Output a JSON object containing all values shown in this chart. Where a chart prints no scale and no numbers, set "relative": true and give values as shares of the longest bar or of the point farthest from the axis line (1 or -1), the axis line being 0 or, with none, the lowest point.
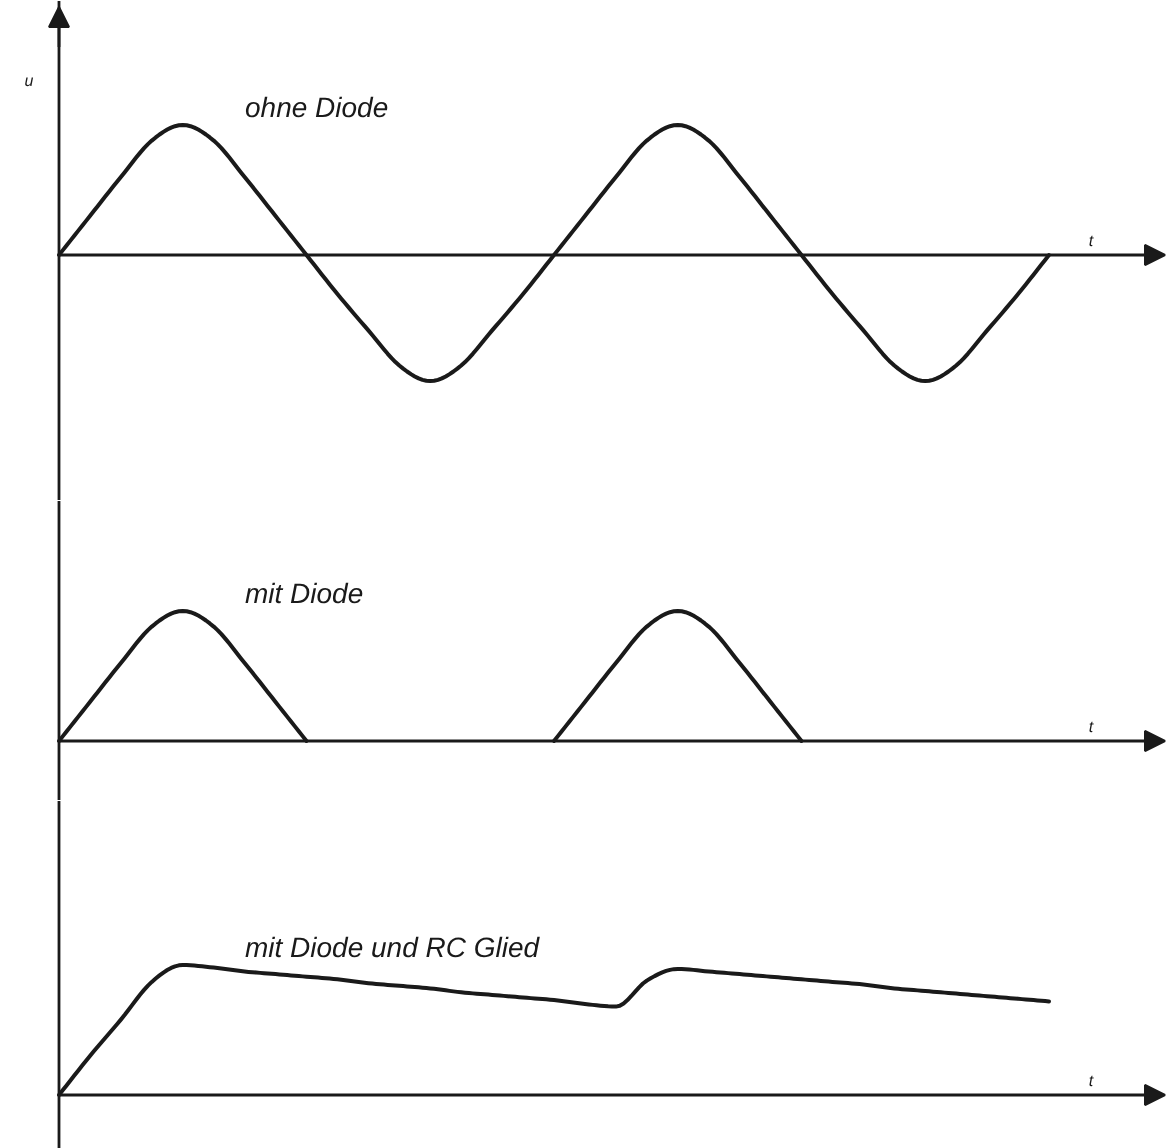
{
  "chart_data": [
    {
      "type": "line",
      "title": "ohne Diode",
      "ylabel": "u",
      "xlabel": "t",
      "relative": true,
      "categories": [
        null,
        null,
        null,
        null,
        null,
        null,
        null,
        null,
        null,
        null,
        null,
        null,
        null,
        null,
        null,
        null,
        null,
        null,
        null,
        null,
        null,
        null,
        null,
        null,
        null,
        null,
        null,
        null,
        null,
        null,
        null,
        null,
        null
      ],
      "series": [
        {
          "color": "#1a1a1a",
          "values": [
            0,
            0.3,
            0.6,
            0.88,
            1,
            0.88,
            0.6,
            0.3,
            0,
            -0.3,
            -0.58,
            -0.85,
            -0.97,
            -0.85,
            -0.58,
            -0.3,
            0,
            0.3,
            0.6,
            0.88,
            1,
            0.88,
            0.6,
            0.3,
            0,
            -0.3,
            -0.58,
            -0.85,
            -0.97,
            -0.85,
            -0.58,
            -0.3,
            0
          ]
        }
      ]
    },
    {
      "type": "line",
      "title": "mit Diode",
      "xlabel": "t",
      "relative": true,
      "categories": [
        null,
        null,
        null,
        null,
        null,
        null,
        null,
        null,
        null,
        null,
        null,
        null,
        null,
        null,
        null,
        null,
        null,
        null,
        null,
        null,
        null,
        null,
        null,
        null,
        null,
        null,
        null,
        null,
        null,
        null,
        null,
        null,
        null
      ],
      "series": [
        {
          "color": "#1a1a1a",
          "values": [
            0,
            0.3,
            0.6,
            0.88,
            1,
            0.88,
            0.6,
            0.3,
            0,
            null,
            null,
            null,
            null,
            null,
            null,
            null,
            0,
            0.3,
            0.6,
            0.88,
            1,
            0.88,
            0.6,
            0.3,
            0,
            null,
            null,
            null,
            null,
            null,
            null,
            null,
            null
          ]
        }
      ]
    },
    {
      "type": "line",
      "title": "mit Diode und RC Glied",
      "xlabel": "t",
      "relative": true,
      "categories": [
        null,
        null,
        null,
        null,
        null,
        null,
        null,
        null,
        null,
        null,
        null,
        null,
        null,
        null,
        null,
        null,
        null,
        null,
        null,
        null,
        null,
        null,
        null,
        null,
        null,
        null,
        null,
        null,
        null,
        null,
        null,
        null,
        null
      ],
      "series": [
        {
          "color": "#1a1a1a",
          "values": [
            0,
            0.3,
            0.58,
            0.87,
            1,
            0.98,
            0.95,
            0.93,
            0.91,
            0.89,
            0.86,
            0.84,
            0.82,
            0.79,
            0.77,
            0.75,
            0.73,
            0.7,
            0.68,
            0.88,
            0.97,
            0.95,
            0.93,
            0.91,
            0.89,
            0.87,
            0.85,
            0.82,
            0.8,
            0.78,
            0.76,
            0.74,
            0.72
          ]
        }
      ]
    }
  ]
}
